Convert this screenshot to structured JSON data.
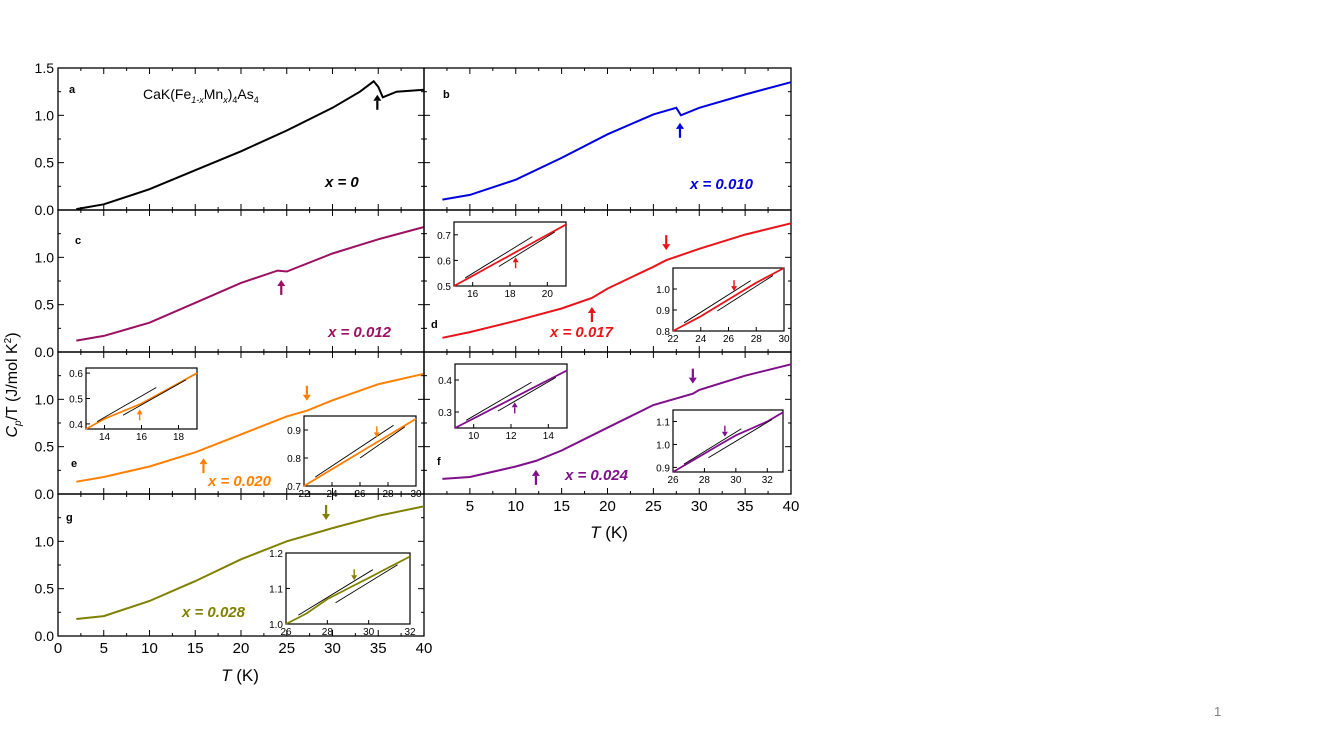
{
  "slide_number": "1",
  "figure": {
    "compound": {
      "prefix": "CaK(Fe",
      "sub1": "1-x",
      "mid": "Mn",
      "sub2": "x",
      "close": ")",
      "sub3": "4",
      "suffix": "As",
      "sub4": "4"
    },
    "ylabel": {
      "c": "C",
      "p": "p",
      "rest": "/T (J/mol K",
      "sup": "2",
      "end": ")"
    },
    "xlabel": {
      "t": "T",
      "unit": " (K)"
    },
    "xlim": [
      0,
      40
    ],
    "xticks": [
      "0",
      "5",
      "10",
      "15",
      "20",
      "25",
      "30",
      "35",
      "40"
    ]
  },
  "chart_data": [
    {
      "type": "line",
      "panel": "a",
      "x_label": "x = 0",
      "color": "#000000",
      "xlim": [
        0,
        40
      ],
      "ylim": [
        0,
        1.5
      ],
      "yticks": [
        "0.0",
        "0.5",
        "1.0",
        "1.5"
      ],
      "arrow_T": 34.9,
      "arrow": "up",
      "x": [
        2,
        5,
        10,
        15,
        20,
        25,
        30,
        33,
        34.5,
        35,
        35.5,
        37,
        40
      ],
      "y": [
        0.01,
        0.06,
        0.22,
        0.42,
        0.62,
        0.84,
        1.08,
        1.25,
        1.36,
        1.3,
        1.19,
        1.25,
        1.27
      ]
    },
    {
      "type": "line",
      "panel": "b",
      "x_label": "x = 0.010",
      "color": "#0000e0",
      "xlim": [
        0,
        40
      ],
      "ylim": [
        0,
        1.5
      ],
      "arrow_T": 27.9,
      "arrow": "up",
      "x": [
        2,
        5,
        10,
        15,
        20,
        25,
        27.5,
        28,
        30,
        35,
        40
      ],
      "y": [
        0.11,
        0.16,
        0.32,
        0.55,
        0.8,
        1.01,
        1.08,
        1.0,
        1.08,
        1.22,
        1.35
      ]
    },
    {
      "type": "line",
      "panel": "c",
      "x_label": "x = 0.012",
      "color": "#9b1060",
      "xlim": [
        0,
        40
      ],
      "ylim": [
        0,
        1.5
      ],
      "yticks": [
        "0.0",
        "0.5",
        "1.0"
      ],
      "arrow_T": 24.4,
      "arrow": "up",
      "x": [
        2,
        5,
        10,
        15,
        20,
        24,
        25,
        30,
        35,
        40
      ],
      "y": [
        0.12,
        0.17,
        0.31,
        0.52,
        0.73,
        0.86,
        0.85,
        1.04,
        1.19,
        1.32
      ]
    },
    {
      "type": "line",
      "panel": "d",
      "x_label": "x = 0.017",
      "color": "#e8141a",
      "xlim": [
        0,
        40
      ],
      "ylim": [
        0,
        1.5
      ],
      "arrow_T": [
        18.3,
        26.4
      ],
      "arrow": [
        "up",
        "down"
      ],
      "x": [
        2,
        5,
        10,
        15,
        18.3,
        20,
        25,
        26.4,
        30,
        35,
        40
      ],
      "y": [
        0.15,
        0.21,
        0.33,
        0.46,
        0.57,
        0.67,
        0.9,
        0.97,
        1.09,
        1.24,
        1.36
      ],
      "inset_1": {
        "xlim": [
          15,
          21
        ],
        "ylim": [
          0.5,
          0.75
        ],
        "xticks": [
          "16",
          "18",
          "20"
        ],
        "yticks": [
          "0.5",
          "0.6",
          "0.7"
        ],
        "arrow_T": 18.3,
        "x": [
          15,
          16,
          17,
          18,
          19,
          20,
          21
        ],
        "y": [
          0.5,
          0.54,
          0.58,
          0.62,
          0.66,
          0.7,
          0.74
        ]
      },
      "inset_2": {
        "xlim": [
          22,
          30
        ],
        "ylim": [
          0.8,
          1.1
        ],
        "xticks": [
          "22",
          "24",
          "26",
          "28",
          "30"
        ],
        "yticks": [
          "0.8",
          "0.9",
          "1.0"
        ],
        "arrow_T": 26.4,
        "x": [
          22,
          24,
          26,
          28,
          30
        ],
        "y": [
          0.8,
          0.87,
          0.95,
          1.03,
          1.1
        ]
      }
    },
    {
      "type": "line",
      "panel": "e",
      "x_label": "x = 0.020",
      "color": "#ff8000",
      "xlim": [
        0,
        40
      ],
      "ylim": [
        0,
        1.5
      ],
      "yticks": [
        "0.0",
        "0.5",
        "1.0"
      ],
      "arrow_T": [
        15.9,
        27.2
      ],
      "arrow": [
        "up",
        "down"
      ],
      "x": [
        2,
        5,
        10,
        15,
        20,
        25,
        27.2,
        30,
        35,
        40
      ],
      "y": [
        0.13,
        0.18,
        0.29,
        0.44,
        0.63,
        0.82,
        0.88,
        0.99,
        1.16,
        1.27
      ],
      "inset_1": {
        "xlim": [
          13,
          19
        ],
        "ylim": [
          0.38,
          0.62
        ],
        "xticks": [
          "14",
          "16",
          "18"
        ],
        "yticks": [
          "0.4",
          "0.5",
          "0.6"
        ],
        "arrow_T": 15.9,
        "x": [
          13,
          14,
          15,
          16,
          17,
          18,
          19
        ],
        "y": [
          0.38,
          0.42,
          0.45,
          0.48,
          0.52,
          0.56,
          0.6
        ]
      },
      "inset_2": {
        "xlim": [
          22,
          30
        ],
        "ylim": [
          0.7,
          0.95
        ],
        "xticks": [
          "22",
          "24",
          "26",
          "28",
          "30"
        ],
        "yticks": [
          "0.7",
          "0.8",
          "0.9"
        ],
        "arrow_T": 27.2,
        "x": [
          22,
          24,
          26,
          28,
          30
        ],
        "y": [
          0.7,
          0.76,
          0.82,
          0.88,
          0.94
        ]
      }
    },
    {
      "type": "line",
      "panel": "f",
      "x_label": "x = 0.024",
      "color": "#7f0f8a",
      "xlim": [
        0,
        40
      ],
      "ylim": [
        0,
        1.5
      ],
      "arrow_T": [
        12.2,
        29.3
      ],
      "arrow": [
        "up",
        "down"
      ],
      "x": [
        2,
        5,
        10,
        12.2,
        15,
        20,
        25,
        29.3,
        30,
        35,
        40
      ],
      "y": [
        0.16,
        0.18,
        0.29,
        0.35,
        0.46,
        0.7,
        0.94,
        1.06,
        1.1,
        1.25,
        1.37
      ],
      "inset_1": {
        "xlim": [
          9,
          15
        ],
        "ylim": [
          0.25,
          0.45
        ],
        "xticks": [
          "10",
          "12",
          "14"
        ],
        "yticks": [
          "0.3",
          "0.4"
        ],
        "arrow_T": 12.2,
        "x": [
          9,
          10,
          11,
          12,
          13,
          14,
          15
        ],
        "y": [
          0.25,
          0.28,
          0.31,
          0.34,
          0.37,
          0.4,
          0.43
        ]
      },
      "inset_2": {
        "xlim": [
          26,
          33
        ],
        "ylim": [
          0.88,
          1.15
        ],
        "xticks": [
          "26",
          "28",
          "30",
          "32"
        ],
        "yticks": [
          "0.9",
          "1.0",
          "1.1"
        ],
        "arrow_T": 29.3,
        "x": [
          26,
          27,
          28,
          29,
          30,
          31,
          32,
          33
        ],
        "y": [
          0.88,
          0.92,
          0.96,
          1.0,
          1.04,
          1.07,
          1.1,
          1.14
        ]
      }
    },
    {
      "type": "line",
      "panel": "g",
      "x_label": "x = 0.028",
      "color": "#808000",
      "xlim": [
        0,
        40
      ],
      "ylim": [
        0,
        1.5
      ],
      "yticks": [
        "0.0",
        "0.5",
        "1.0"
      ],
      "arrow_T": 29.3,
      "arrow": "down",
      "x": [
        2,
        5,
        10,
        15,
        20,
        25,
        29.3,
        30,
        35,
        40
      ],
      "y": [
        0.18,
        0.21,
        0.37,
        0.58,
        0.81,
        1.0,
        1.12,
        1.14,
        1.27,
        1.37
      ],
      "inset_1": {
        "xlim": [
          26,
          32
        ],
        "ylim": [
          1.0,
          1.2
        ],
        "xticks": [
          "26",
          "28",
          "30",
          "32"
        ],
        "yticks": [
          "1.0",
          "1.1",
          "1.2"
        ],
        "arrow_T": 29.3,
        "x": [
          26,
          27,
          28,
          29,
          30,
          31,
          32
        ],
        "y": [
          1.0,
          1.03,
          1.07,
          1.1,
          1.13,
          1.16,
          1.19
        ]
      }
    }
  ]
}
